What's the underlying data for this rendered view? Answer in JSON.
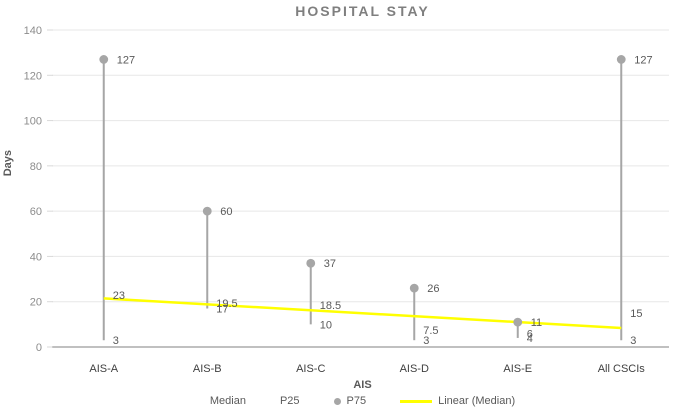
{
  "chart_data": {
    "type": "scatter",
    "subtype": "high-low-lines-with-p75-dot-markers",
    "title": "HOSPITAL STAY",
    "xlabel": "AIS",
    "ylabel": "Days",
    "ylim": [
      0,
      140
    ],
    "yticks": [
      0,
      20,
      40,
      60,
      80,
      100,
      120,
      140
    ],
    "grid": true,
    "categories": [
      "AIS-A",
      "AIS-B",
      "AIS-C",
      "AIS-D",
      "AIS-E",
      "All CSCIs"
    ],
    "series": [
      {
        "name": "Median",
        "values": [
          23,
          19.5,
          18.5,
          7.5,
          6,
          15
        ]
      },
      {
        "name": "P25",
        "values": [
          3,
          17,
          10,
          3,
          4,
          3
        ]
      },
      {
        "name": "P75",
        "values": [
          127,
          60,
          37,
          26,
          11,
          127
        ]
      }
    ],
    "trendline": {
      "name": "Linear (Median)",
      "basis": "Median"
    },
    "legend": {
      "position": "bottom",
      "entries": [
        "Median",
        "P25",
        "P75",
        "Linear (Median)"
      ]
    },
    "colors": {
      "series_gray": "#a6a6a6",
      "trend_yellow": "#ffff00",
      "data_label": "#595959",
      "y_tick_label": "#8c8c8c",
      "category_label": "#404040",
      "title": "#7f7f7f",
      "gridline": "#e7e7e7",
      "axis_line": "#c0c0c0",
      "tick_mark": "#d9d9d9"
    }
  }
}
